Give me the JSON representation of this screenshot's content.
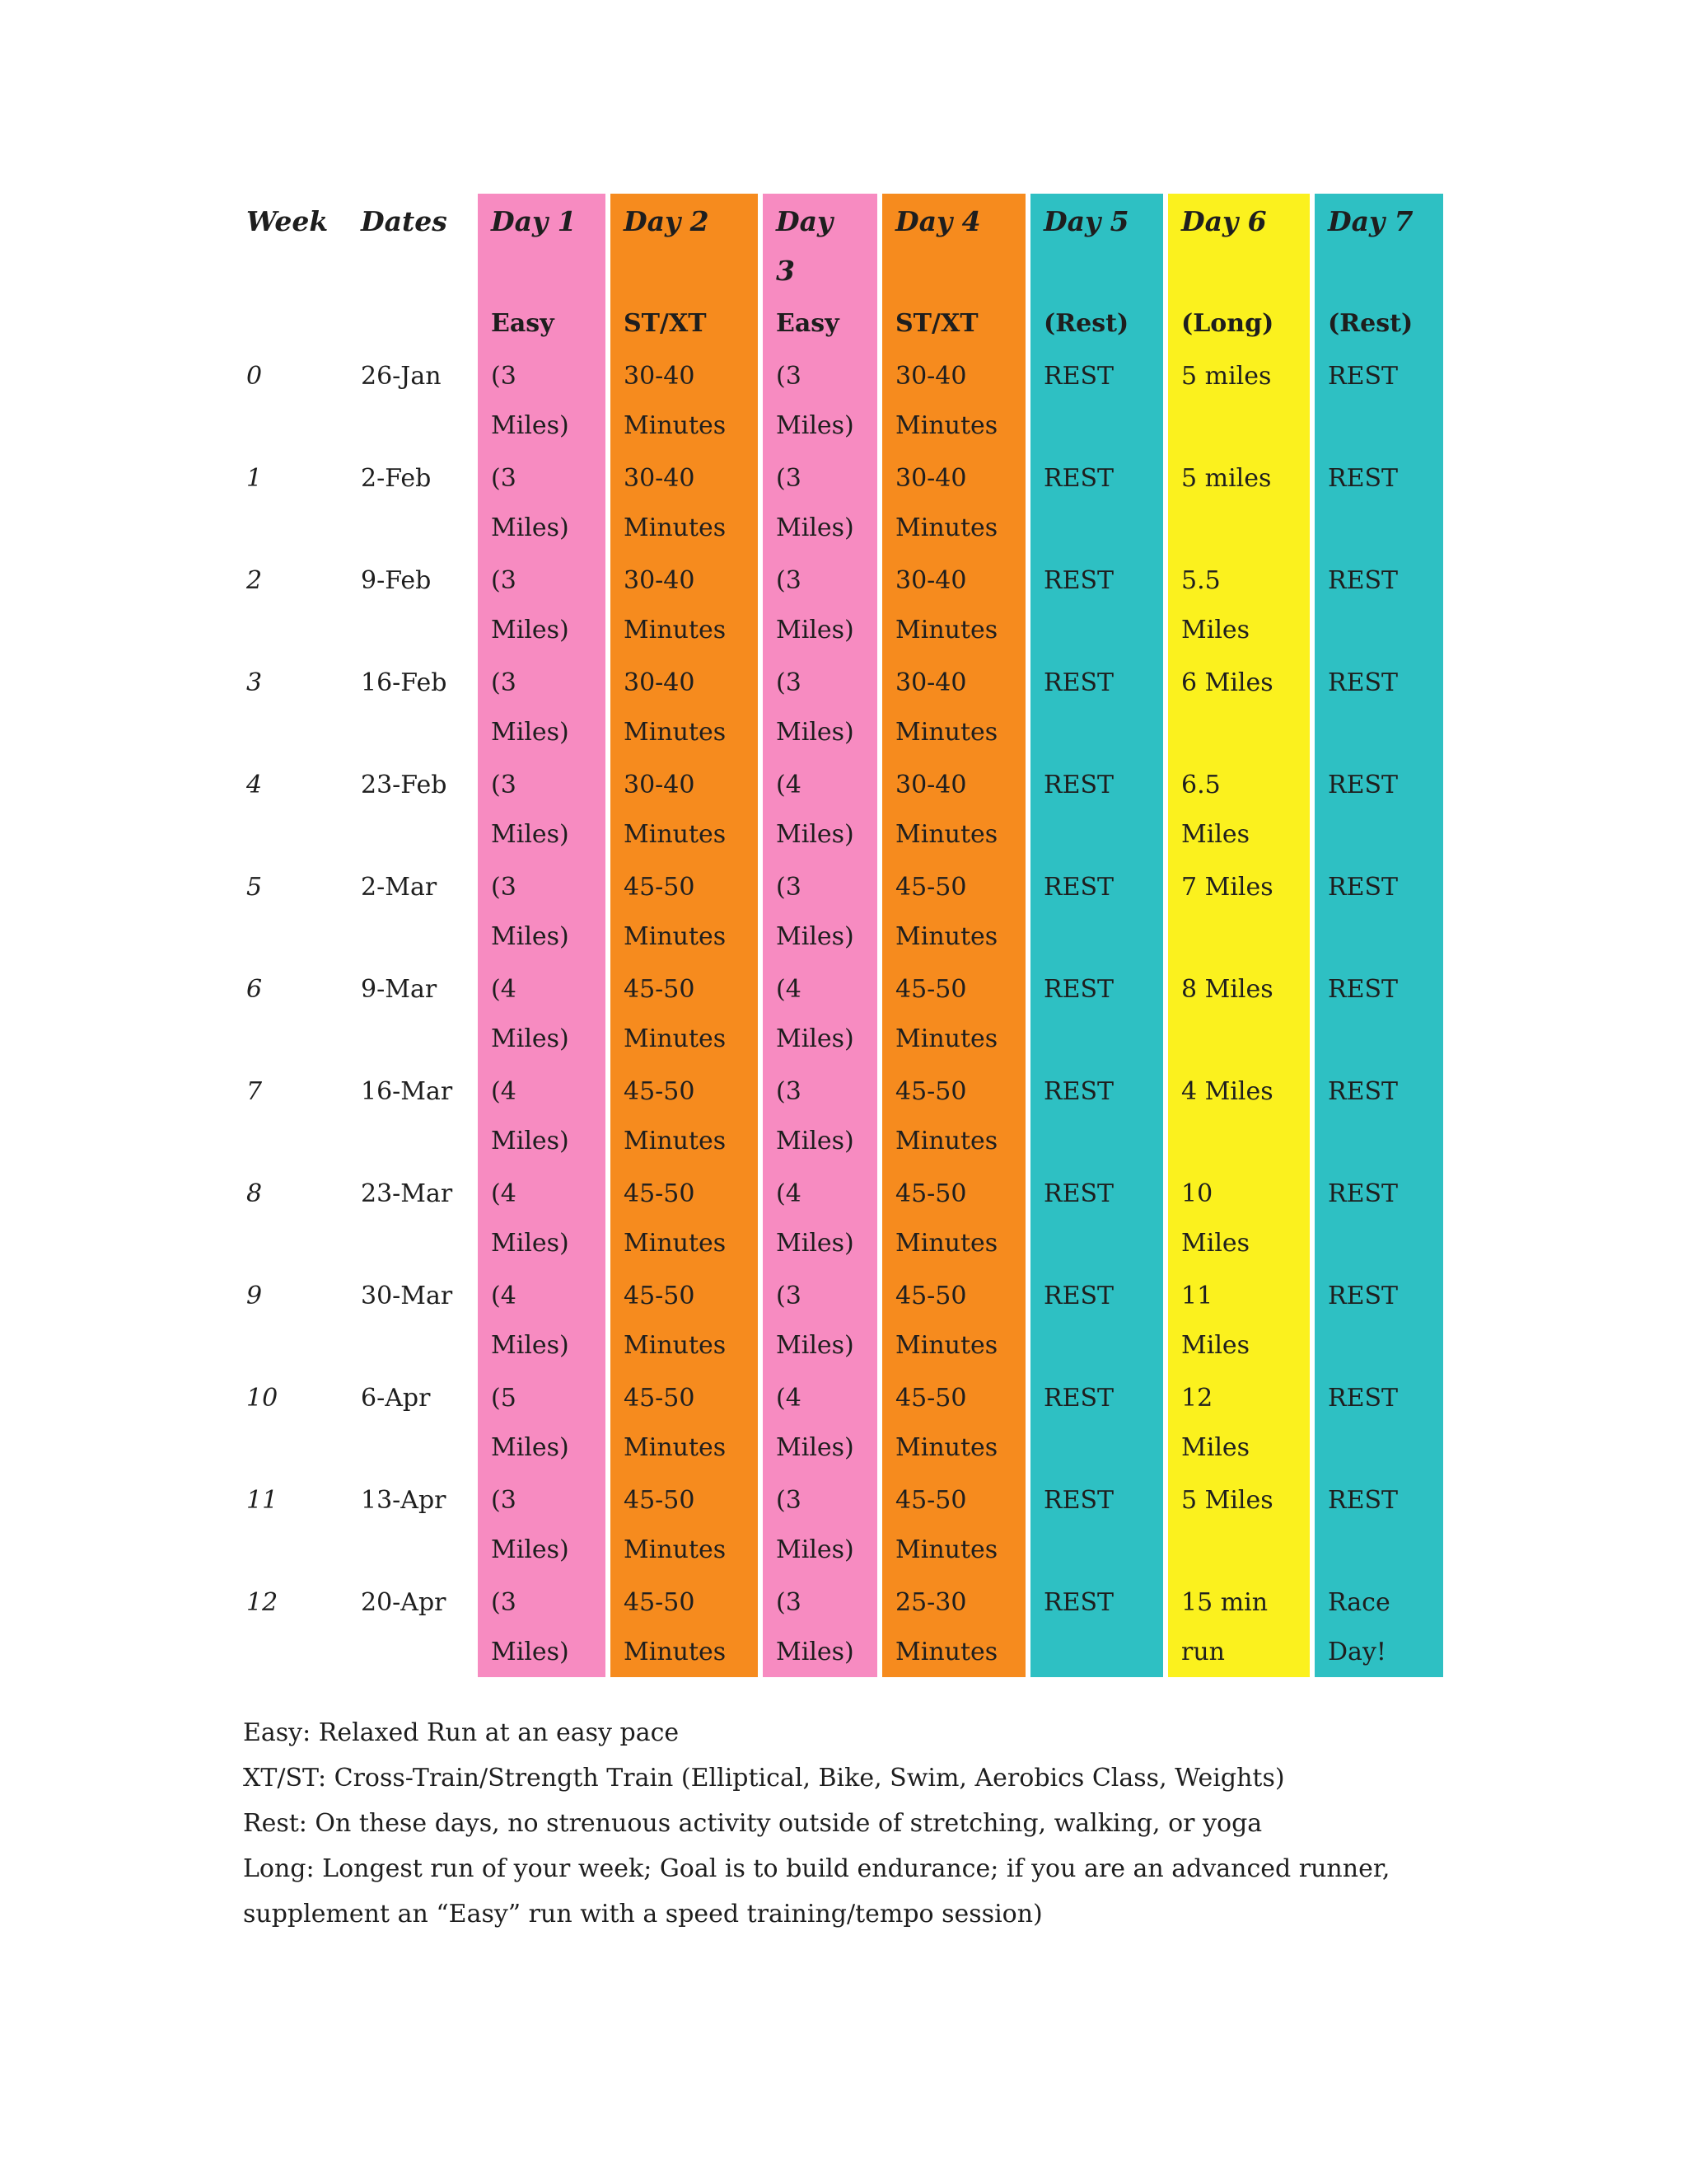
{
  "colors": {
    "pink": "#F78BC1",
    "orange": "#F68B1E",
    "teal": "#2EC0C3",
    "yellow": "#FBF11E",
    "text": "#1e1e1e",
    "background": "#ffffff"
  },
  "table": {
    "columns": [
      {
        "id": "week",
        "label": "Week",
        "sub": "",
        "color": "none"
      },
      {
        "id": "dates",
        "label": "Dates",
        "sub": "",
        "color": "none"
      },
      {
        "id": "day1",
        "label": "Day 1",
        "sub": "Easy",
        "color": "pink"
      },
      {
        "id": "day2",
        "label": "Day 2",
        "sub": "ST/XT",
        "color": "orange"
      },
      {
        "id": "day3",
        "label": "Day 3",
        "sub": "Easy",
        "color": "pink"
      },
      {
        "id": "day4",
        "label": "Day 4",
        "sub": "ST/XT",
        "color": "orange"
      },
      {
        "id": "day5",
        "label": "Day 5",
        "sub": "(Rest)",
        "color": "teal"
      },
      {
        "id": "day6",
        "label": "Day 6",
        "sub": "(Long)",
        "color": "yellow"
      },
      {
        "id": "day7",
        "label": "Day 7",
        "sub": "(Rest)",
        "color": "teal"
      }
    ],
    "rows": [
      {
        "week": "0",
        "dates": "26-Jan",
        "day1": "(3 Miles)",
        "day2": "30-40 Minutes",
        "day3": "(3 Miles)",
        "day4": "30-40 Minutes",
        "day5": "REST",
        "day6": "5 miles",
        "day7": "REST"
      },
      {
        "week": "1",
        "dates": "2-Feb",
        "day1": "(3 Miles)",
        "day2": "30-40 Minutes",
        "day3": "(3 Miles)",
        "day4": "30-40 Minutes",
        "day5": "REST",
        "day6": "5 miles",
        "day7": "REST"
      },
      {
        "week": "2",
        "dates": "9-Feb",
        "day1": "(3 Miles)",
        "day2": "30-40 Minutes",
        "day3": "(3 Miles)",
        "day4": "30-40 Minutes",
        "day5": "REST",
        "day6": "5.5 Miles",
        "day7": "REST"
      },
      {
        "week": "3",
        "dates": "16-Feb",
        "day1": "(3 Miles)",
        "day2": "30-40 Minutes",
        "day3": "(3 Miles)",
        "day4": "30-40 Minutes",
        "day5": "REST",
        "day6": "6 Miles",
        "day7": "REST"
      },
      {
        "week": "4",
        "dates": "23-Feb",
        "day1": "(3 Miles)",
        "day2": "30-40 Minutes",
        "day3": "(4 Miles)",
        "day4": "30-40 Minutes",
        "day5": "REST",
        "day6": "6.5 Miles",
        "day7": "REST"
      },
      {
        "week": "5",
        "dates": "2-Mar",
        "day1": "(3 Miles)",
        "day2": "45-50 Minutes",
        "day3": "(3 Miles)",
        "day4": "45-50 Minutes",
        "day5": "REST",
        "day6": "7 Miles",
        "day7": "REST"
      },
      {
        "week": "6",
        "dates": "9-Mar",
        "day1": "(4 Miles)",
        "day2": "45-50 Minutes",
        "day3": "(4 Miles)",
        "day4": "45-50 Minutes",
        "day5": "REST",
        "day6": "8 Miles",
        "day7": "REST"
      },
      {
        "week": "7",
        "dates": "16-Mar",
        "day1": "(4 Miles)",
        "day2": "45-50 Minutes",
        "day3": "(3 Miles)",
        "day4": "45-50 Minutes",
        "day5": "REST",
        "day6": "4 Miles",
        "day7": "REST"
      },
      {
        "week": "8",
        "dates": "23-Mar",
        "day1": "(4 Miles)",
        "day2": "45-50 Minutes",
        "day3": "(4 Miles)",
        "day4": "45-50 Minutes",
        "day5": "REST",
        "day6": "10 Miles",
        "day7": "REST"
      },
      {
        "week": "9",
        "dates": "30-Mar",
        "day1": "(4 Miles)",
        "day2": "45-50 Minutes",
        "day3": "(3 Miles)",
        "day4": "45-50 Minutes",
        "day5": "REST",
        "day6": "11 Miles",
        "day7": "REST"
      },
      {
        "week": "10",
        "dates": "6-Apr",
        "day1": "(5 Miles)",
        "day2": "45-50 Minutes",
        "day3": "(4 Miles)",
        "day4": "45-50 Minutes",
        "day5": "REST",
        "day6": "12 Miles",
        "day7": "REST"
      },
      {
        "week": "11",
        "dates": "13-Apr",
        "day1": "(3 Miles)",
        "day2": "45-50 Minutes",
        "day3": "(3 Miles)",
        "day4": "45-50 Minutes",
        "day5": "REST",
        "day6": "5 Miles",
        "day7": "REST"
      },
      {
        "week": "12",
        "dates": "20-Apr",
        "day1": "(3 Miles)",
        "day2": "45-50 Minutes",
        "day3": "(3 Miles)",
        "day4": "25-30 Minutes",
        "day5": "REST",
        "day6": "15 min run",
        "day7": "Race Day!"
      }
    ]
  },
  "legend": {
    "lines": [
      "Easy: Relaxed Run at an easy pace",
      "XT/ST: Cross-Train/Strength Train (Elliptical, Bike, Swim, Aerobics Class, Weights)",
      "Rest: On these days, no strenuous activity outside of stretching, walking, or yoga",
      "Long: Longest run of your week; Goal is to build endurance; if you are an advanced runner, supplement an “Easy” run with a speed training/tempo session)"
    ]
  }
}
